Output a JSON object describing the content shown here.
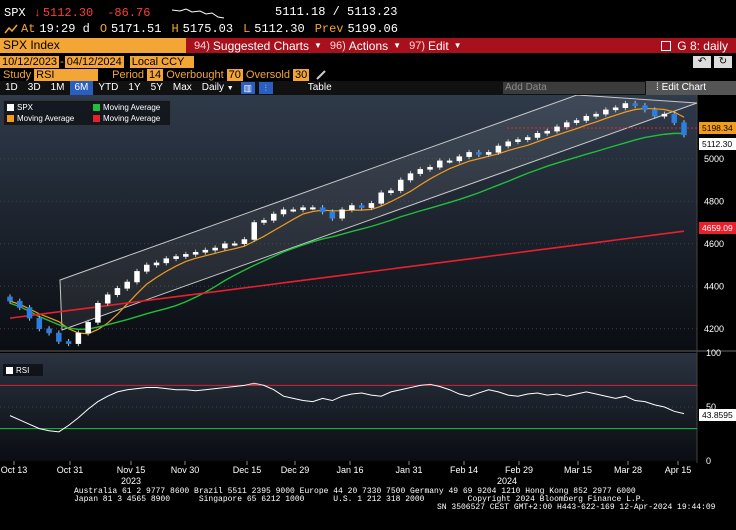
{
  "quote": {
    "ticker": "SPX",
    "arrow": "↓",
    "last": "5112.30",
    "change": "-86.76",
    "bid_ask": "5111.18 / 5113.23",
    "at_label": "At",
    "time": "19:29 d",
    "open_label": "O",
    "open": "5171.51",
    "high_label": "H",
    "high": "5175.03",
    "low_label": "L",
    "low": "5112.30",
    "prev_label": "Prev",
    "prev": "5199.06"
  },
  "menu": {
    "title": "SPX Index",
    "items": [
      {
        "num": "94)",
        "label": "Suggested Charts"
      },
      {
        "num": "96)",
        "label": "Actions"
      },
      {
        "num": "97)",
        "label": "Edit"
      }
    ],
    "right_label": "G 8: daily"
  },
  "params": {
    "start_date": "10/12/2023",
    "end_date": "04/12/2024",
    "currency": "Local CCY"
  },
  "study": {
    "label": "Study",
    "name": "RSI",
    "period_label": "Period",
    "period": "14",
    "overbought_label": "Overbought",
    "overbought": "70",
    "oversold_label": "Oversold",
    "oversold": "30"
  },
  "range_bar": {
    "ranges": [
      "1D",
      "3D",
      "1M",
      "6M",
      "YTD",
      "1Y",
      "5Y",
      "Max"
    ],
    "active": "6M",
    "interval": "Daily",
    "table_label": "Table",
    "add_data_placeholder": "Add Data",
    "edit_chart_label": "Edit Chart"
  },
  "legend": {
    "items": [
      {
        "name": "SPX",
        "color": "#ffffff"
      },
      {
        "name": "Moving Average",
        "color": "#1fbf3a"
      },
      {
        "name": "Moving Average",
        "color": "#f39c1c"
      },
      {
        "name": "Moving Average",
        "color": "#e8202e"
      }
    ]
  },
  "rsi_legend": "RSI",
  "chart_data": [
    {
      "type": "candlestick",
      "series": [
        {
          "name": "SPX",
          "last": 5112.3
        },
        {
          "name": "Moving Average",
          "color": "#f39c1c",
          "last": 5198.34
        },
        {
          "name": "Moving Average",
          "color": "#1fbf3a",
          "last": 5112.3
        },
        {
          "name": "Moving Average",
          "color": "#e8202e",
          "last": 4659.09
        }
      ],
      "y_ticks": [
        "5000",
        "4800",
        "4600",
        "4400",
        "4200"
      ],
      "value_labels": [
        "5198.34",
        "5112.30",
        "4659.09"
      ],
      "x_ticks": [
        "Oct 13",
        "Oct 31",
        "Nov 15",
        "Nov 30",
        "Dec 15",
        "Dec 29",
        "Jan 16",
        "Jan 31",
        "Feb 14",
        "Feb 29",
        "Mar 15",
        "Mar 28",
        "Apr 15"
      ],
      "year_labels": [
        "2023",
        "2024"
      ],
      "ylim": [
        4100,
        5300
      ],
      "approx_close": [
        4330,
        4300,
        4250,
        4200,
        4180,
        4140,
        4130,
        4180,
        4230,
        4320,
        4360,
        4390,
        4420,
        4470,
        4500,
        4510,
        4530,
        4540,
        4550,
        4560,
        4570,
        4580,
        4600,
        4600,
        4620,
        4700,
        4710,
        4740,
        4760,
        4760,
        4770,
        4770,
        4750,
        4720,
        4760,
        4780,
        4770,
        4790,
        4840,
        4850,
        4900,
        4930,
        4950,
        4960,
        4990,
        4990,
        5010,
        5030,
        5020,
        5030,
        5060,
        5080,
        5090,
        5100,
        5120,
        5130,
        5150,
        5170,
        5180,
        5200,
        5210,
        5230,
        5240,
        5260,
        5250,
        5230,
        5200,
        5210,
        5170,
        5112.3
      ]
    },
    {
      "type": "line",
      "series": [
        {
          "name": "RSI",
          "last": 43.8595
        }
      ],
      "y_ticks": [
        "100",
        "50",
        "0"
      ],
      "value_labels": [
        "43.8595"
      ],
      "ylim": [
        0,
        100
      ],
      "overbought": 70,
      "oversold": 30,
      "approx_values": [
        42,
        38,
        34,
        30,
        28,
        27,
        33,
        40,
        48,
        55,
        60,
        64,
        66,
        67,
        68,
        68,
        67,
        66,
        66,
        65,
        66,
        67,
        68,
        69,
        70,
        72,
        70,
        66,
        60,
        58,
        56,
        55,
        58,
        56,
        60,
        62,
        63,
        61,
        60,
        64,
        66,
        68,
        70,
        71,
        69,
        66,
        62,
        60,
        63,
        66,
        64,
        61,
        60,
        62,
        63,
        61,
        62,
        60,
        62,
        64,
        62,
        60,
        58,
        60,
        56,
        55,
        52,
        50,
        46,
        43.8595
      ]
    }
  ],
  "footer": {
    "line1": "Australia 61 2 9777 8600 Brazil 5511 2395 9000 Europe 44 20 7330 7500 Germany 49 69 9204 1210 Hong Kong 852 2977 6000",
    "line2": "Japan 81 3 4565 8900      Singapore 65 6212 1000      U.S. 1 212 318 2000         Copyright 2024 Bloomberg Finance L.P.",
    "line3": "SN 3506527 CEST GMT+2:00 H443-622-169 12-Apr-2024 19:44:09"
  }
}
